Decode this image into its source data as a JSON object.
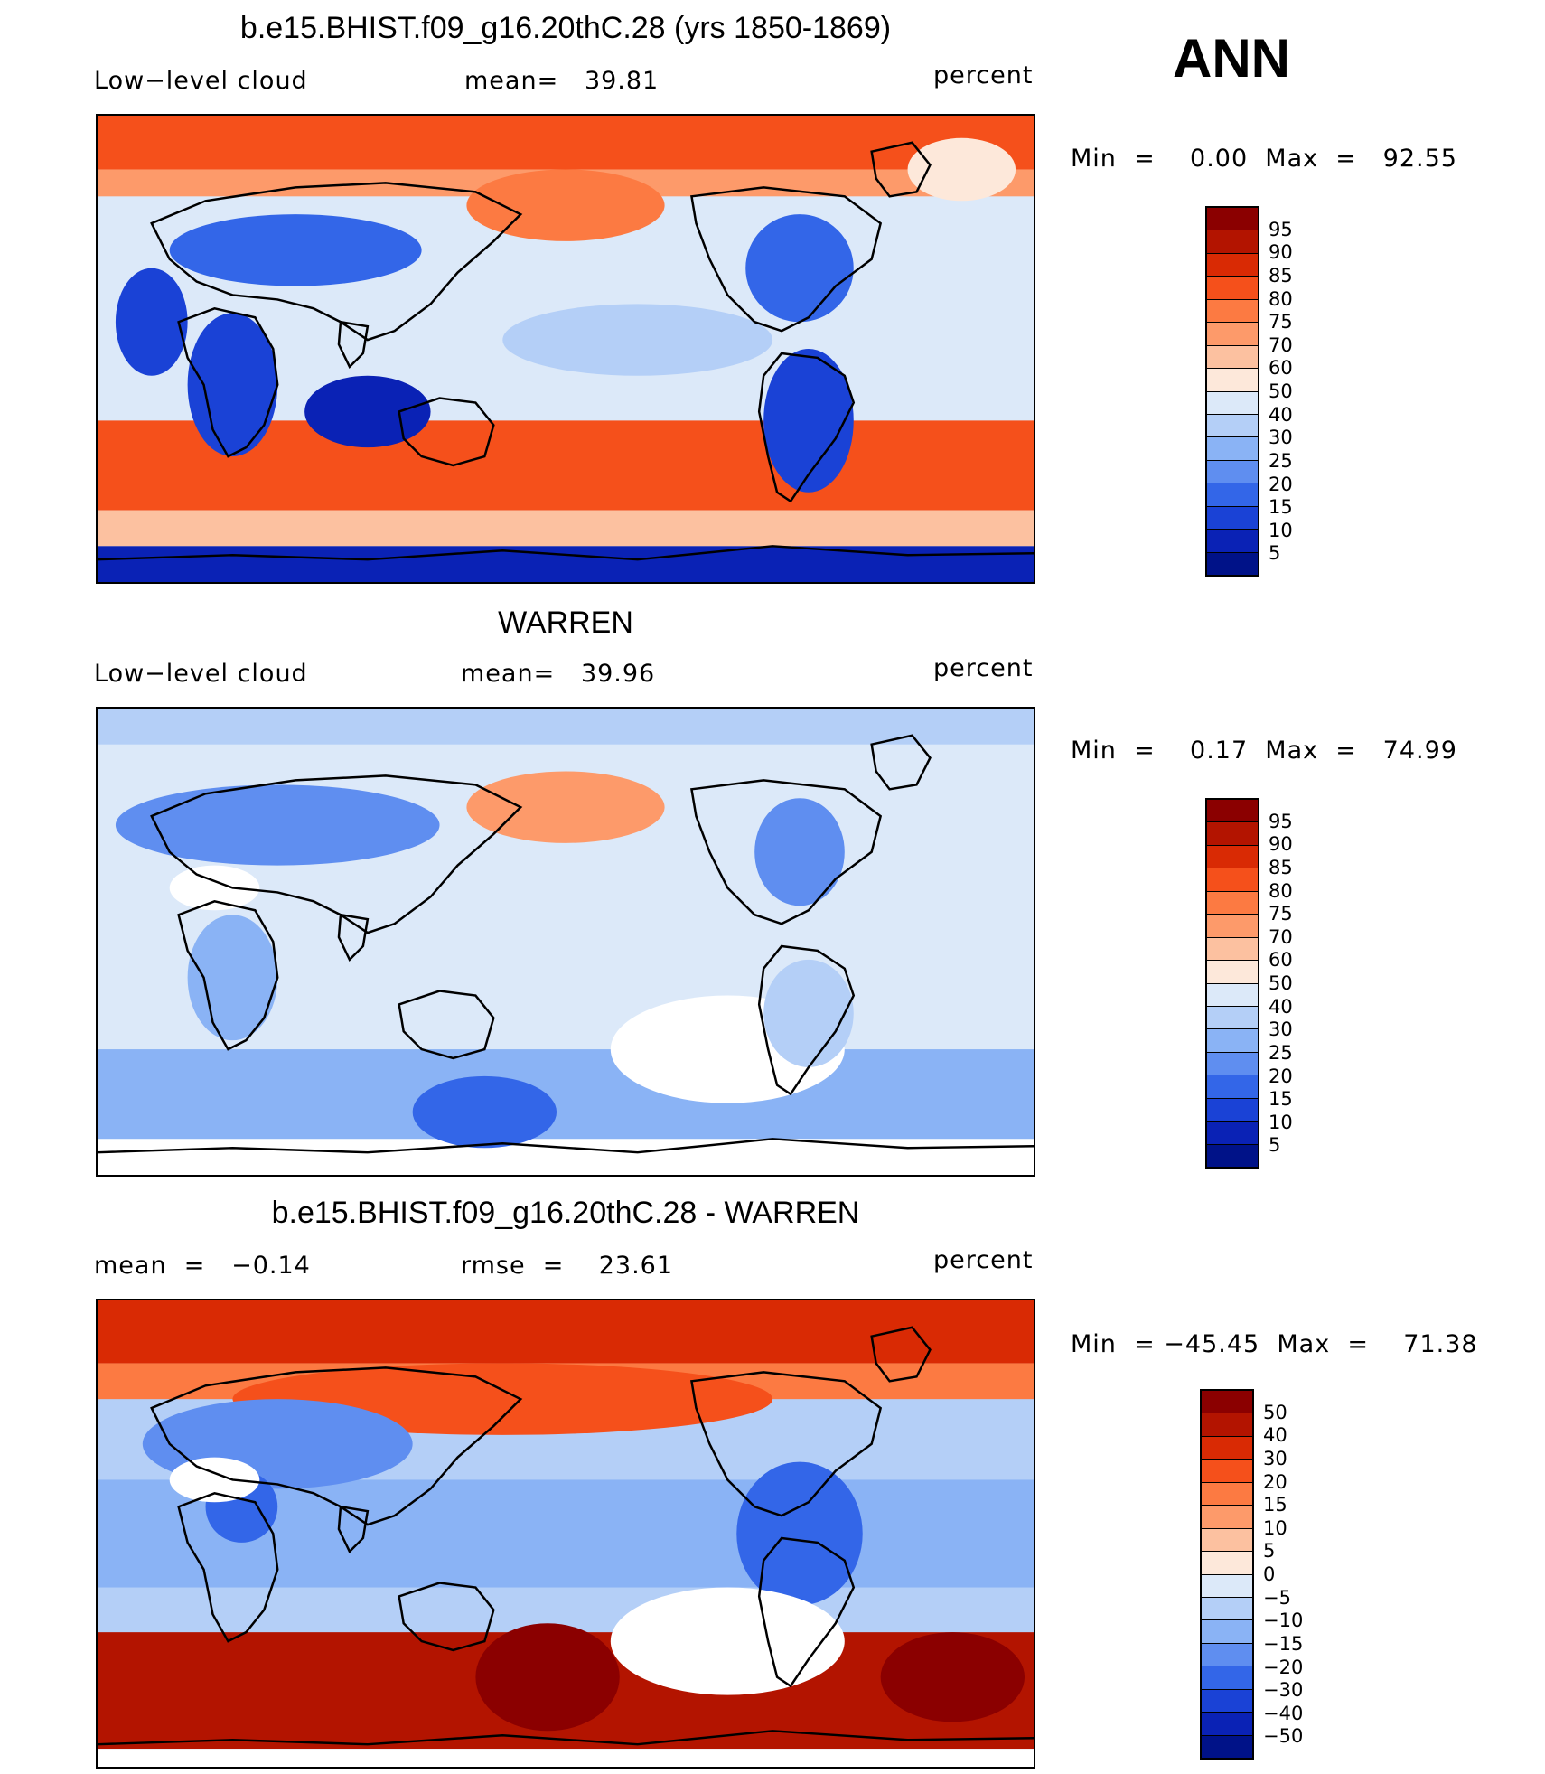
{
  "season": "ANN",
  "panels": [
    {
      "title": "b.e15.BHIST.f09_g16.20thC.28 (yrs 1850-1869)",
      "left_label": "Low−level cloud",
      "center_label": "mean=   39.81",
      "units": "percent",
      "minmax": "Min  =    0.00  Max  =   92.55",
      "colorbar_labels": [
        "95",
        "90",
        "85",
        "80",
        "75",
        "70",
        "60",
        "50",
        "40",
        "30",
        "25",
        "20",
        "15",
        "10",
        "5"
      ],
      "style": "model"
    },
    {
      "title": "WARREN",
      "left_label": "Low−level cloud",
      "center_label": "mean=   39.96",
      "units": "percent",
      "minmax": "Min  =    0.17  Max  =   74.99",
      "colorbar_labels": [
        "95",
        "90",
        "85",
        "80",
        "75",
        "70",
        "60",
        "50",
        "40",
        "30",
        "25",
        "20",
        "15",
        "10",
        "5"
      ],
      "style": "obs"
    },
    {
      "title": "b.e15.BHIST.f09_g16.20thC.28 - WARREN",
      "left_label": "mean  =   −0.14",
      "center_label": "rmse  =    23.61",
      "units": "percent",
      "minmax": "Min  = −45.45  Max  =    71.38",
      "colorbar_labels": [
        "50",
        "40",
        "30",
        "20",
        "15",
        "10",
        "5",
        "0",
        "−5",
        "−10",
        "−15",
        "−20",
        "−30",
        "−40",
        "−50"
      ],
      "style": "diff"
    }
  ],
  "colorbar_colors": [
    "#8b0000",
    "#b31400",
    "#d92a04",
    "#f5501b",
    "#fc7a42",
    "#fd9a6a",
    "#fcc1a0",
    "#fde8da",
    "#dce9f9",
    "#b4cff7",
    "#8ab3f5",
    "#5f8ef0",
    "#3366e8",
    "#1a42d6",
    "#0a22b5",
    "#001288"
  ]
}
